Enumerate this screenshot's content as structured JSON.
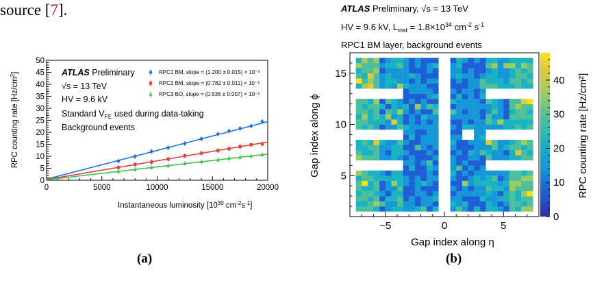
{
  "page": {
    "fragment_text": "source [",
    "fragment_ref": "7",
    "fragment_end": "].",
    "caption_a": "(a)",
    "caption_b": "(b)"
  },
  "chart_data": [
    {
      "type": "scatter",
      "panel": "a",
      "xlabel": "Instantaneous luminosity [10^30 cm^-2 s^-1]",
      "ylabel": "RPC counting rate [Hz/cm^2]",
      "xlim": [
        0,
        20000
      ],
      "ylim": [
        0,
        50
      ],
      "x_ticks": [
        "0",
        "5000",
        "10000",
        "15000",
        "20000"
      ],
      "y_ticks": [
        "0",
        "5",
        "10",
        "15",
        "20",
        "25",
        "30",
        "35",
        "40",
        "45",
        "50"
      ],
      "annotations": {
        "experiment": "ATLAS",
        "status": "Preliminary",
        "energy": "√s = 13 TeV",
        "voltage": "HV = 9.6 kV",
        "vfe": "Standard V",
        "vfe_sub": "FE",
        "vfe_tail": " used during data-taking",
        "events": "Background events"
      },
      "series": [
        {
          "name": "RPC1 BM, slope = (1.200 ± 0.015) × 10⁻³",
          "color": "#1f6fe0",
          "marker": "circle",
          "intercept": 0.45,
          "slope": 0.0012,
          "x": [
            6500,
            8000,
            9500,
            11000,
            12500,
            14000,
            15500,
            16500,
            17500,
            18500,
            19500
          ],
          "y": [
            8.0,
            9.9,
            12.0,
            13.6,
            15.3,
            17.3,
            19.3,
            20.5,
            21.6,
            22.6,
            24.5
          ]
        },
        {
          "name": "RPC2 BM, slope = (0.782 ± 0.011) × 10⁻³",
          "color": "#d9433b",
          "marker": "square",
          "intercept": 0.3,
          "slope": 0.000782,
          "x": [
            6500,
            8000,
            9500,
            11000,
            12500,
            14000,
            15500,
            16500,
            17500,
            18500,
            19500
          ],
          "y": [
            5.3,
            6.6,
            7.6,
            8.8,
            10.2,
            11.3,
            12.4,
            13.1,
            14.0,
            14.8,
            15.1
          ]
        },
        {
          "name": "RPC3 BO, slope = (0.536 ± 0.007) × 10⁻³",
          "color": "#3fbf4a",
          "marker": "triangle",
          "intercept": 0.2,
          "slope": 0.000536,
          "x": [
            6500,
            8000,
            9500,
            11000,
            12500,
            14000,
            15500,
            16500,
            17500,
            18500,
            19500
          ],
          "y": [
            3.7,
            4.5,
            5.4,
            6.1,
            7.0,
            7.7,
            8.5,
            9.1,
            9.6,
            10.1,
            10.7
          ]
        }
      ]
    },
    {
      "type": "heatmap",
      "panel": "b",
      "title_line1_bold": "ATLAS",
      "title_line1": " Preliminary, √s = 13 TeV",
      "title_line2": "HV = 9.6 kV, L",
      "title_line2_sub": "inst",
      "title_line2_tail": " = 1.8×10",
      "title_line2_sup": "34",
      "title_line2_unit": " cm",
      "title_line2_unit_sup": "-2",
      "title_line2_unit2": " s",
      "title_line2_unit2_sup": "-1",
      "title_line3": "RPC1 BM layer, background events",
      "xlabel": "Gap index along η",
      "ylabel": "Gap index along ϕ",
      "zlabel": "RPC counting rate [Hz/cm²]",
      "xlim": [
        -8,
        8
      ],
      "ylim": [
        1,
        17
      ],
      "zlim": [
        0,
        48
      ],
      "x_ticks": [
        "−5",
        "0",
        "5"
      ],
      "y_ticks": [
        "5",
        "10",
        "15"
      ],
      "z_ticks": [
        "0",
        "10",
        "20",
        "30",
        "40"
      ],
      "colorscale": [
        "#2c2f9e",
        "#1f5fd6",
        "#1697d8",
        "#19b3c3",
        "#4dbf9a",
        "#9ccb62",
        "#e1c93a",
        "#ffe01a"
      ],
      "eta_bins": [
        -7,
        -6,
        -5,
        -4,
        -3,
        -2,
        -1,
        1,
        2,
        3,
        4,
        5,
        6,
        7
      ],
      "phi_bins": [
        2,
        3,
        4,
        5,
        6,
        7,
        8,
        9,
        10,
        11,
        12,
        13,
        14,
        15,
        16
      ],
      "description": "per-gap counting rates mostly 8–20 Hz/cm², outer |η| gaps 20–35 Hz/cm², hot spots up to ~45 Hz/cm²"
    }
  ]
}
